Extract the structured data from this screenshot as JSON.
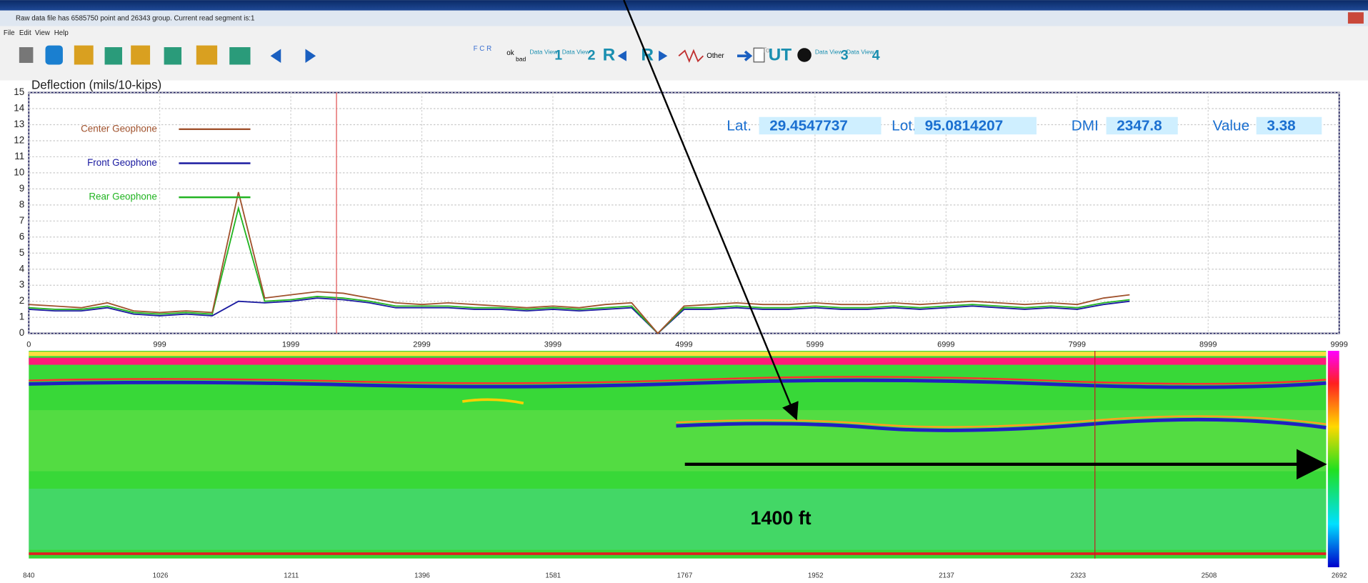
{
  "window": {
    "title": "Raw data file has 6585750 point and 26343 group. Current read segment is:1",
    "menu": [
      "File",
      "Edit",
      "View",
      "Help"
    ]
  },
  "toolbar": {
    "labels": [
      "F C R",
      "ok",
      "bad",
      "Data View",
      "1",
      "Data View",
      "2",
      "R",
      "R",
      "Other",
      "To",
      "UT",
      "Data View",
      "3",
      "Data View",
      "4"
    ]
  },
  "readout": {
    "lat_label": "Lat.",
    "lat": 29.4547737,
    "lot_label": "Lot.",
    "lot": 95.0814207,
    "dmi_label": "DMI",
    "dmi": 2347.8,
    "value_label": "Value",
    "value": 3.38
  },
  "chart_data": {
    "type": "line",
    "title": "Deflection (mils/10-kips)",
    "x": [
      0,
      200,
      400,
      600,
      800,
      1000,
      1200,
      1400,
      1600,
      1800,
      2000,
      2200,
      2400,
      2600,
      2800,
      3000,
      3200,
      3400,
      3600,
      3800,
      4000,
      4200,
      4400,
      4600,
      4800,
      5000,
      5200,
      5400,
      5600,
      5800,
      6000,
      6200,
      6400,
      6600,
      6800,
      7000,
      7200,
      7400,
      7600,
      7800,
      8000,
      8200,
      8400
    ],
    "series": [
      {
        "name": "Center Geophone",
        "color": "#a0522d",
        "values": [
          1.8,
          1.7,
          1.6,
          1.9,
          1.4,
          1.3,
          1.4,
          1.3,
          8.8,
          2.2,
          2.4,
          2.6,
          2.5,
          2.2,
          1.9,
          1.8,
          1.9,
          1.8,
          1.7,
          1.6,
          1.7,
          1.6,
          1.8,
          1.9,
          0,
          1.7,
          1.8,
          1.9,
          1.8,
          1.8,
          1.9,
          1.8,
          1.8,
          1.9,
          1.8,
          1.9,
          2.0,
          1.9,
          1.8,
          1.9,
          1.8,
          2.2,
          2.4
        ]
      },
      {
        "name": "Front Geophone",
        "color": "#1a1aa0",
        "values": [
          1.5,
          1.4,
          1.4,
          1.6,
          1.2,
          1.1,
          1.2,
          1.1,
          2.0,
          1.9,
          2.0,
          2.2,
          2.1,
          1.9,
          1.6,
          1.6,
          1.6,
          1.5,
          1.5,
          1.4,
          1.5,
          1.4,
          1.5,
          1.6,
          0,
          1.5,
          1.5,
          1.6,
          1.5,
          1.5,
          1.6,
          1.5,
          1.5,
          1.6,
          1.5,
          1.6,
          1.7,
          1.6,
          1.5,
          1.6,
          1.5,
          1.8,
          2.0
        ]
      },
      {
        "name": "Rear Geophone",
        "color": "#22b422",
        "values": [
          1.6,
          1.5,
          1.5,
          1.7,
          1.3,
          1.2,
          1.3,
          1.2,
          7.8,
          2.0,
          2.1,
          2.3,
          2.2,
          2.0,
          1.7,
          1.7,
          1.7,
          1.6,
          1.6,
          1.5,
          1.6,
          1.5,
          1.6,
          1.7,
          0,
          1.6,
          1.6,
          1.7,
          1.6,
          1.6,
          1.7,
          1.6,
          1.6,
          1.7,
          1.6,
          1.7,
          1.8,
          1.7,
          1.6,
          1.7,
          1.6,
          1.9,
          2.1
        ]
      }
    ],
    "xlim": [
      0,
      9999
    ],
    "xticks": [
      0,
      999,
      1999,
      2999,
      3999,
      4999,
      5999,
      6999,
      7999,
      8999,
      9999
    ],
    "ylim": [
      0,
      15
    ],
    "yticks": [
      0,
      1,
      2,
      3,
      4,
      5,
      6,
      7,
      8,
      9,
      10,
      11,
      12,
      13,
      14,
      15
    ],
    "grid": true
  },
  "radar": {
    "xticks": [
      840,
      1026,
      1211,
      1396,
      1581,
      1767,
      1952,
      2137,
      2323,
      2508,
      2692
    ]
  },
  "annotation": "1400 ft"
}
